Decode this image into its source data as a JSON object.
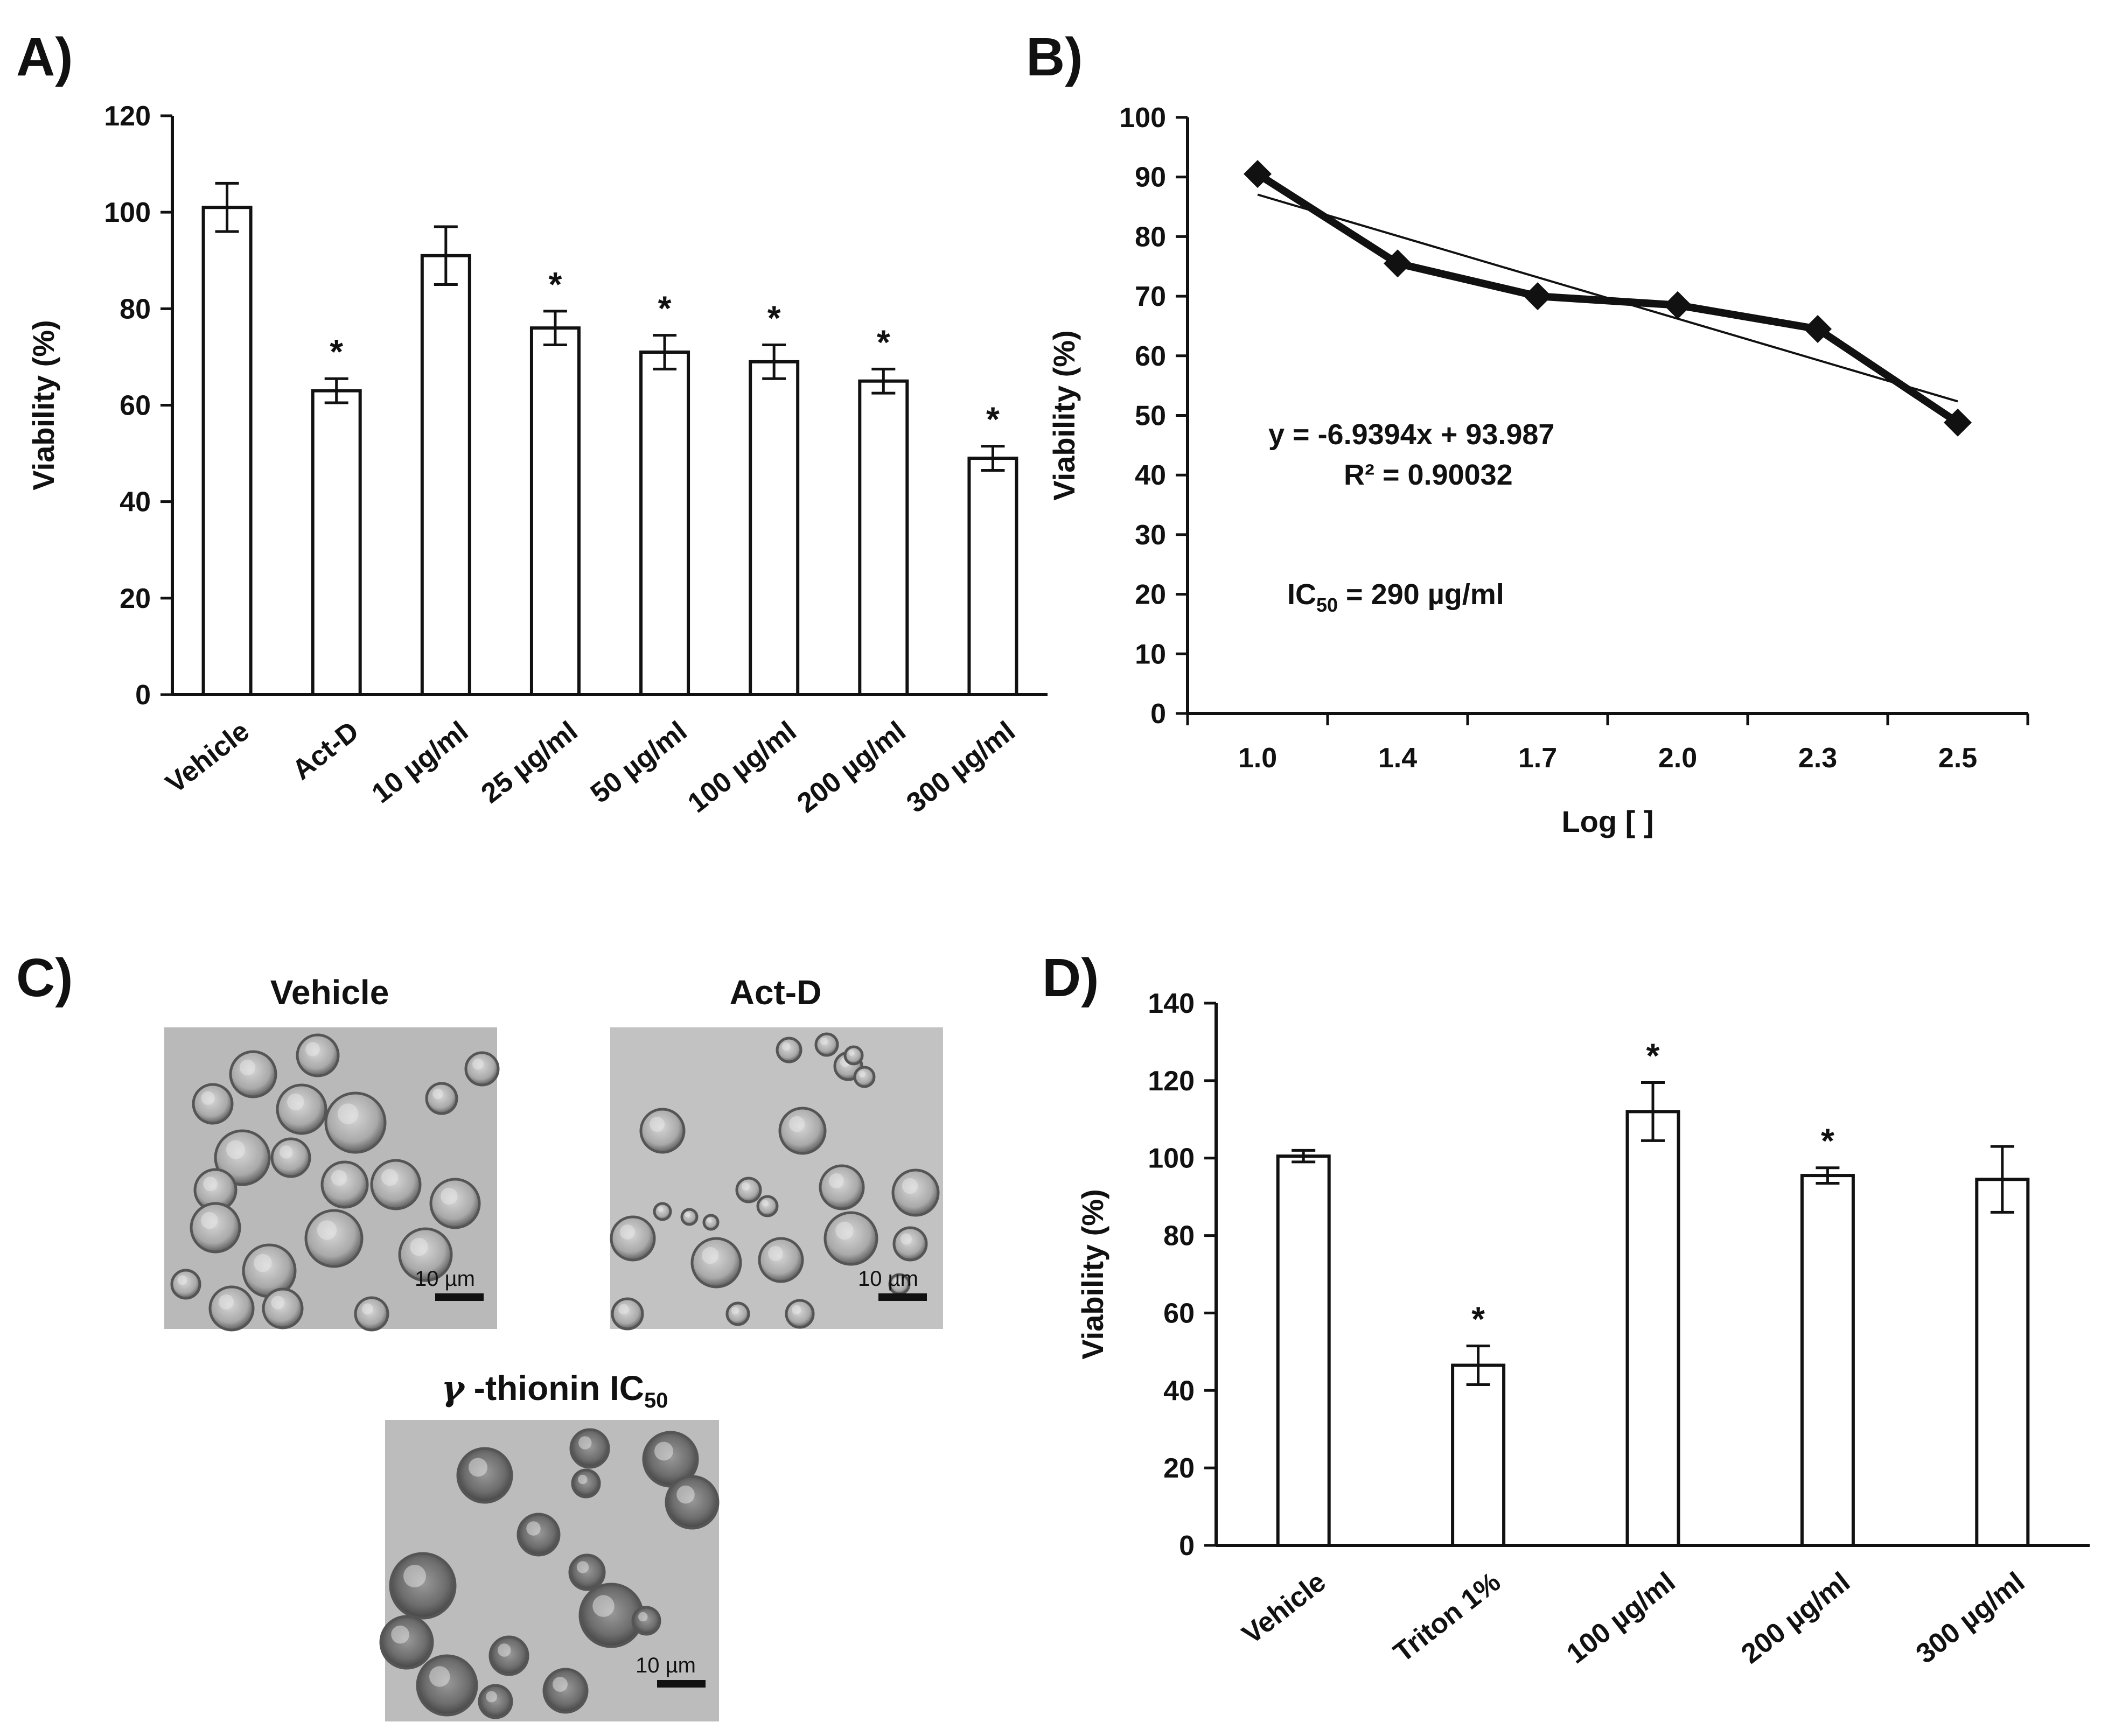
{
  "panels": {
    "A": {
      "label": "A)"
    },
    "B": {
      "label": "B)"
    },
    "C": {
      "label": "C)"
    },
    "D": {
      "label": "D)"
    }
  },
  "chart_data": [
    {
      "id": "A",
      "type": "bar",
      "title": "",
      "ylabel": "Viability (%)",
      "xlabel": "",
      "ylim": [
        0,
        120
      ],
      "yticks": [
        0,
        20,
        40,
        60,
        80,
        100,
        120
      ],
      "categories": [
        "Vehicle",
        "Act-D",
        "10 µg/ml",
        "25 µg/ml",
        "50 µg/ml",
        "100 µg/ml",
        "200 µg/ml",
        "300 µg/ml"
      ],
      "values": [
        101,
        63,
        91,
        76,
        71,
        69,
        65,
        49
      ],
      "errors": [
        5,
        2.5,
        6,
        3.5,
        3.5,
        3.5,
        2.5,
        2.5
      ],
      "significance": [
        "",
        "*",
        "",
        "*",
        "*",
        "*",
        "*",
        "*"
      ]
    },
    {
      "id": "B",
      "type": "line",
      "title": "",
      "ylabel": "Viability (%)",
      "xlabel": "Log [ ]",
      "ylim": [
        0,
        100
      ],
      "yticks": [
        0,
        10,
        20,
        30,
        40,
        50,
        60,
        70,
        80,
        90,
        100
      ],
      "categories": [
        "1.0",
        "1.4",
        "1.7",
        "2.0",
        "2.3",
        "2.5"
      ],
      "values": [
        90.5,
        75.5,
        70,
        68.5,
        64.5,
        48.8
      ],
      "trendline": {
        "slope": -6.9394,
        "intercept": 93.987
      },
      "annotations": {
        "equation": "y = -6.9394x + 93.987",
        "r2": "R² = 0.90032",
        "ic50_prefix": "IC",
        "ic50_sub": "50",
        "ic50_value": " = 290 µg/ml"
      }
    },
    {
      "id": "D",
      "type": "bar",
      "title": "",
      "ylabel": "Viability (%)",
      "xlabel": "",
      "ylim": [
        0,
        140
      ],
      "yticks": [
        0,
        20,
        40,
        60,
        80,
        100,
        120,
        140
      ],
      "categories": [
        "Vehicle",
        "Triton 1%",
        "100 µg/ml",
        "200 µg/ml",
        "300 µg/ml"
      ],
      "values": [
        100.5,
        46.5,
        112,
        95.5,
        94.5
      ],
      "errors": [
        1.5,
        5,
        7.5,
        2,
        8.5
      ],
      "significance": [
        "",
        "*",
        "*",
        "*",
        ""
      ]
    }
  ],
  "micrographs": [
    {
      "title": "Vehicle",
      "scale": "10 µm"
    },
    {
      "title": "Act-D",
      "scale": "10 µm"
    },
    {
      "title_prefix": "γ",
      "title": " -thionin IC",
      "title_sub": "50",
      "scale": "10 µm"
    }
  ],
  "colors": {
    "ink": "#111111",
    "bar_fill": "#ffffff",
    "micro_bg": "#b8b8b8",
    "cell_edge": "#5a5a5a"
  }
}
